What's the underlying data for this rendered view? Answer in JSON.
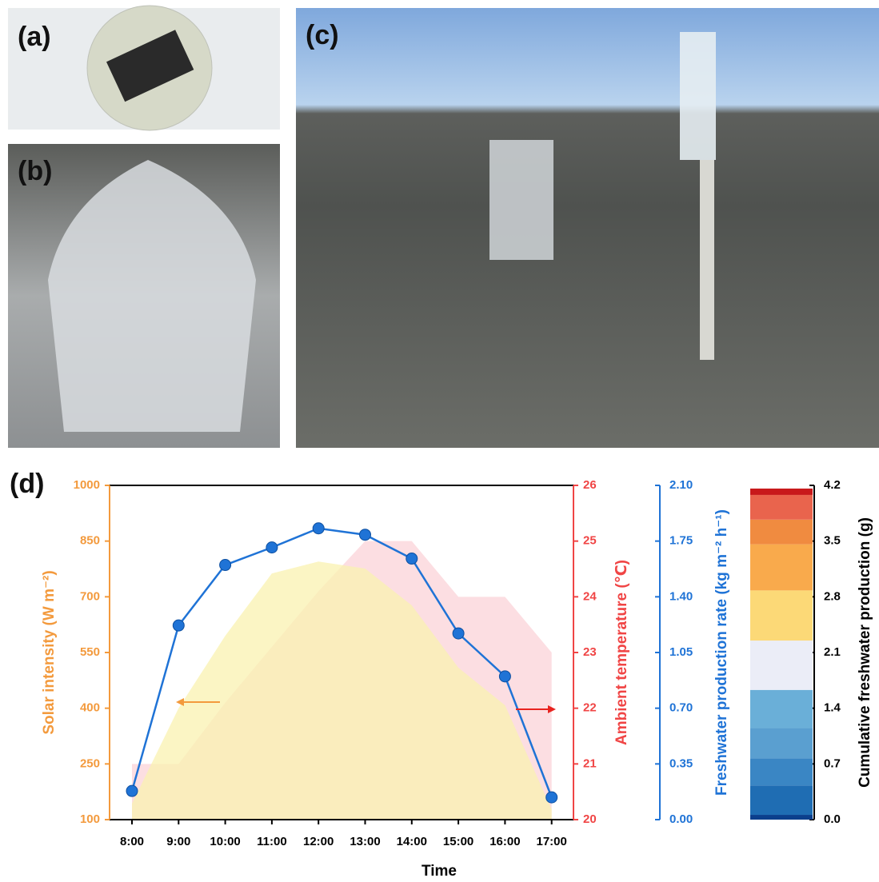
{
  "panel_labels": [
    "(a)",
    "(b)",
    "(c)",
    "(d)"
  ],
  "chart_data": [
    {
      "type": "line",
      "x_label": "Time",
      "y_label": "Solar intensity (W m⁻²)",
      "y2_label": "Ambient temperature (℃)",
      "y3_label": "Freshwater production rate (kg m⁻² h⁻¹)",
      "categories": [
        "8:00",
        "9:00",
        "10:00",
        "11:00",
        "12:00",
        "13:00",
        "14:00",
        "15:00",
        "16:00",
        "17:00"
      ],
      "ylim": [
        100,
        1000
      ],
      "yticks": [
        100,
        250,
        400,
        550,
        700,
        850,
        1000
      ],
      "y2lim": [
        20,
        26
      ],
      "y2ticks": [
        20,
        21,
        22,
        23,
        24,
        25,
        26
      ],
      "y3lim": [
        0,
        2.1
      ],
      "y3ticks": [
        {
          "value": 0,
          "label": "0.00"
        },
        0.35,
        {
          "value": 0.7,
          "label": "0.70"
        },
        1.05,
        {
          "value": 1.4,
          "label": "1.40"
        },
        1.75,
        {
          "value": 2.1,
          "label": "2.10"
        }
      ],
      "series": [
        {
          "type": "area",
          "axis": "y",
          "color": "#f9f1b0",
          "values": [
            143,
            400,
            595,
            763,
            795,
            776,
            677,
            509,
            408,
            128
          ]
        },
        {
          "type": "area",
          "axis": "y2",
          "color": "#fbd3d8",
          "values": [
            21.0,
            21.0,
            22.1,
            23.1,
            24.1,
            25.0,
            25.0,
            24.0,
            24.0,
            23.0
          ]
        },
        {
          "type": "line",
          "axis": "y3",
          "color": "#1f73d6",
          "values": [
            0.18,
            1.22,
            1.6,
            1.71,
            1.83,
            1.79,
            1.64,
            1.17,
            0.9,
            0.14
          ]
        }
      ]
    },
    {
      "type": "stacked-bar",
      "y_label": "Cumulative freshwater production (g)",
      "ylim": [
        0,
        4.2
      ],
      "yticks": [
        {
          "value": 0,
          "label": "0.0"
        },
        0.7,
        1.4,
        2.1,
        2.8,
        3.5,
        4.2
      ],
      "values": [
        0.06,
        0.37,
        0.34,
        0.38,
        0.48,
        0.62,
        0.63,
        0.58,
        0.31,
        0.31,
        0.08
      ],
      "colors": [
        "#0b3f8c",
        "#1f6db3",
        "#3a86c4",
        "#5a9fd0",
        "#6aafd8",
        "#ebedf7",
        "#fcd977",
        "#f9aa4c",
        "#f08b40",
        "#e9644d",
        "#c8191b"
      ]
    }
  ]
}
